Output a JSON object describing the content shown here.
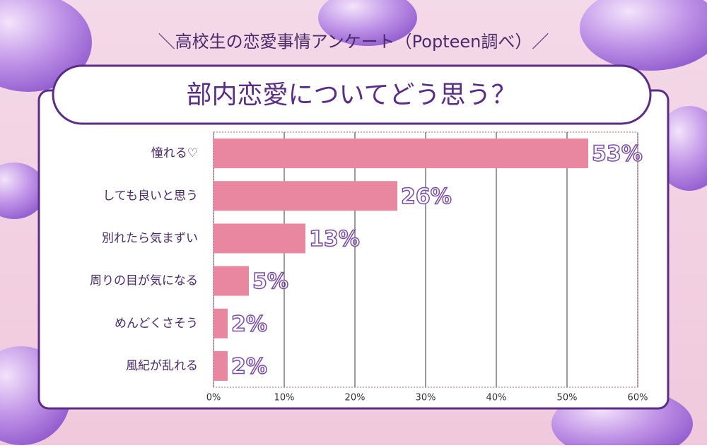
{
  "chart_data": {
    "type": "bar",
    "orientation": "horizontal",
    "header": "＼高校生の恋愛事情アンケート（Popteen調べ）／",
    "title": "部内恋愛についてどう思う？",
    "categories": [
      "憧れる♡",
      "しても良いと思う",
      "別れたら気まずい",
      "周りの目が気になる",
      "めんどくさそう",
      "風紀が乱れる"
    ],
    "values": [
      53,
      26,
      13,
      5,
      2,
      2
    ],
    "value_labels": [
      "53%",
      "26%",
      "13%",
      "5%",
      "2%",
      "2%"
    ],
    "color": "#e8879f",
    "xlim": [
      0,
      60
    ],
    "xticks": [
      {
        "value": 0,
        "label": "0%"
      },
      {
        "value": 10,
        "label": "10%"
      },
      {
        "value": 20,
        "label": "20%"
      },
      {
        "value": 30,
        "label": "30%"
      },
      {
        "value": 40,
        "label": "40%"
      },
      {
        "value": 50,
        "label": "50%"
      },
      {
        "value": 60,
        "label": "60%"
      }
    ],
    "grid": true
  }
}
